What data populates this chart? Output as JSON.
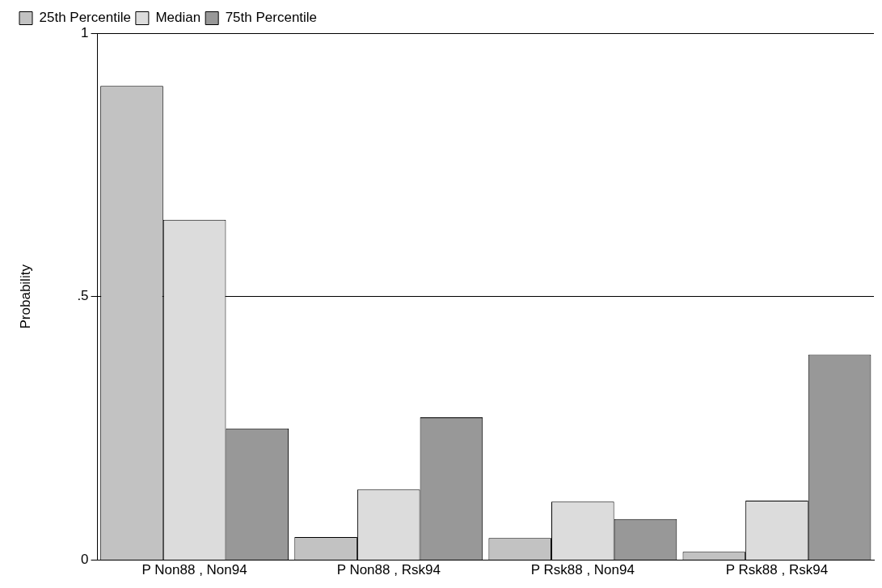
{
  "chart_data": {
    "type": "bar",
    "ylabel": "Probability",
    "categories": [
      "P Non88 , Non94",
      "P Non88 , Rsk94",
      "P Rsk88 , Non94",
      "P Rsk88 , Rsk94"
    ],
    "series": [
      {
        "name": "25th Percentile",
        "color": "#c2c2c2",
        "values": [
          0.9,
          0.044,
          0.042,
          0.016
        ]
      },
      {
        "name": "Median",
        "color": "#dcdcdc",
        "values": [
          0.646,
          0.134,
          0.111,
          0.113
        ]
      },
      {
        "name": "75th Percentile",
        "color": "#989898",
        "values": [
          0.25,
          0.271,
          0.078,
          0.39
        ]
      }
    ],
    "ylim": [
      0,
      1
    ],
    "yticks": [
      0,
      {
        "value": 0.5,
        "label": ".5"
      },
      1
    ],
    "grid": "y",
    "legend": "top left"
  }
}
